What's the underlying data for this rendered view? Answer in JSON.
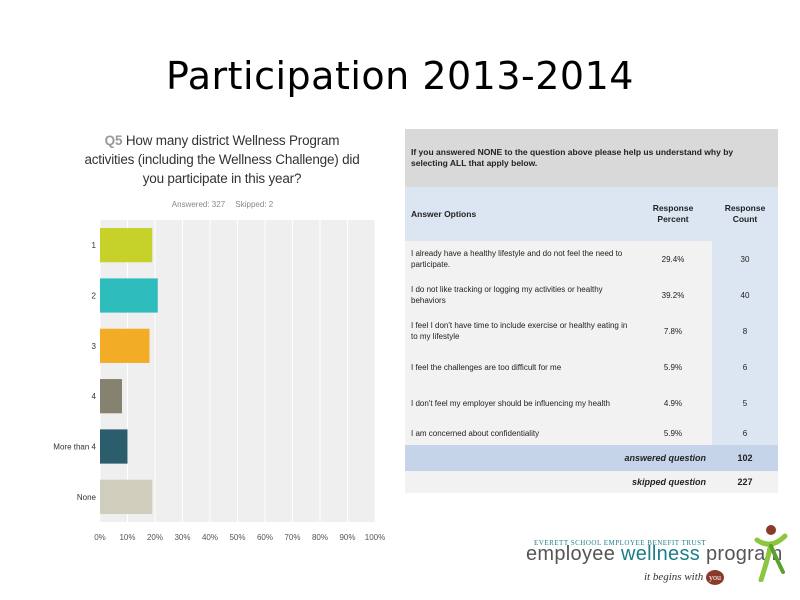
{
  "slide": {
    "title": "Participation 2013-2014"
  },
  "chart_header": {
    "qnum": "Q5",
    "question": "How many district Wellness Program activities (including the Wellness Challenge) did you participate in this year?",
    "answered": "Answered: 327",
    "skipped": "Skipped: 2"
  },
  "chart_data": {
    "type": "bar",
    "orientation": "horizontal",
    "categories": [
      "1",
      "2",
      "3",
      "4",
      "More than 4",
      "None"
    ],
    "values": [
      19,
      21,
      18,
      8,
      10,
      19
    ],
    "colors": [
      "#c6d22a",
      "#2fbcbc",
      "#f3ac25",
      "#85826f",
      "#2b5d6c",
      "#cfcdbb"
    ],
    "xlim": [
      0,
      100
    ],
    "xticks": [
      "0%",
      "10%",
      "20%",
      "30%",
      "40%",
      "50%",
      "60%",
      "70%",
      "80%",
      "90%",
      "100%"
    ],
    "grid": true,
    "title": "",
    "xlabel": "",
    "ylabel": ""
  },
  "table": {
    "prompt": "If you answered NONE to the question above please help us understand why by selecting ALL that apply below.",
    "col_answer": "Answer Options",
    "col_percent": "Response Percent",
    "col_count": "Response Count",
    "rows": [
      {
        "option": "I already have a healthy lifestyle and do not feel the need to participate.",
        "percent": "29.4%",
        "count": "30"
      },
      {
        "option": "I do not like tracking or logging my activities or healthy behaviors",
        "percent": "39.2%",
        "count": "40"
      },
      {
        "option": "I feel I don't have time to include exercise or healthy eating in to my lifestyle",
        "percent": "7.8%",
        "count": "8"
      },
      {
        "option": "I feel the challenges are too difficult for me",
        "percent": "5.9%",
        "count": "6"
      },
      {
        "option": "I don't feel my employer should be influencing my health",
        "percent": "4.9%",
        "count": "5"
      },
      {
        "option": "I am concerned about confidentiality",
        "percent": "5.9%",
        "count": "6"
      }
    ],
    "answered_label": "answered question",
    "answered_value": "102",
    "skipped_label": "skipped question",
    "skipped_value": "227"
  },
  "logo": {
    "trust": "EVERETT SCHOOL EMPLOYEE BENEFIT TRUST",
    "name_a": "employee ",
    "name_b": "wellness",
    "name_c": " program",
    "tagline": "it begins with",
    "you": "you",
    "accent": "#1e7f8a",
    "figure_colors": [
      "#8a3a2a",
      "#8cc63f"
    ]
  }
}
